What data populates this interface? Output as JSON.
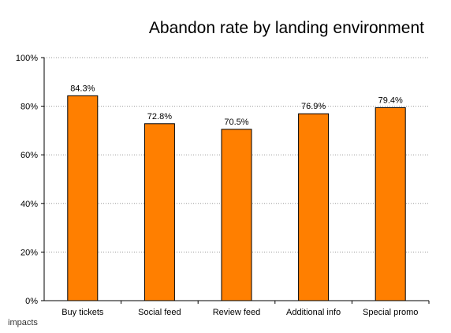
{
  "chart_data": {
    "type": "bar",
    "title": "Abandon rate by landing environment",
    "categories": [
      "Buy tickets",
      "Social feed",
      "Review feed",
      "Additional info",
      "Special promo"
    ],
    "values": [
      84.3,
      72.8,
      70.5,
      76.9,
      79.4
    ],
    "data_labels": [
      "84.3%",
      "72.8%",
      "70.5%",
      "76.9%",
      "79.4%"
    ],
    "ylim": [
      0,
      100
    ],
    "yticks": [
      0,
      20,
      40,
      60,
      80,
      100
    ],
    "ytick_labels": [
      "0%",
      "20%",
      "40%",
      "60%",
      "80%",
      "100%"
    ],
    "xlabel": "",
    "ylabel": "",
    "grid": true,
    "legend": "none",
    "bar_color": "#ff7f00",
    "bar_edge_color": "#000000"
  },
  "footer": {
    "logo_text": "impacts"
  }
}
